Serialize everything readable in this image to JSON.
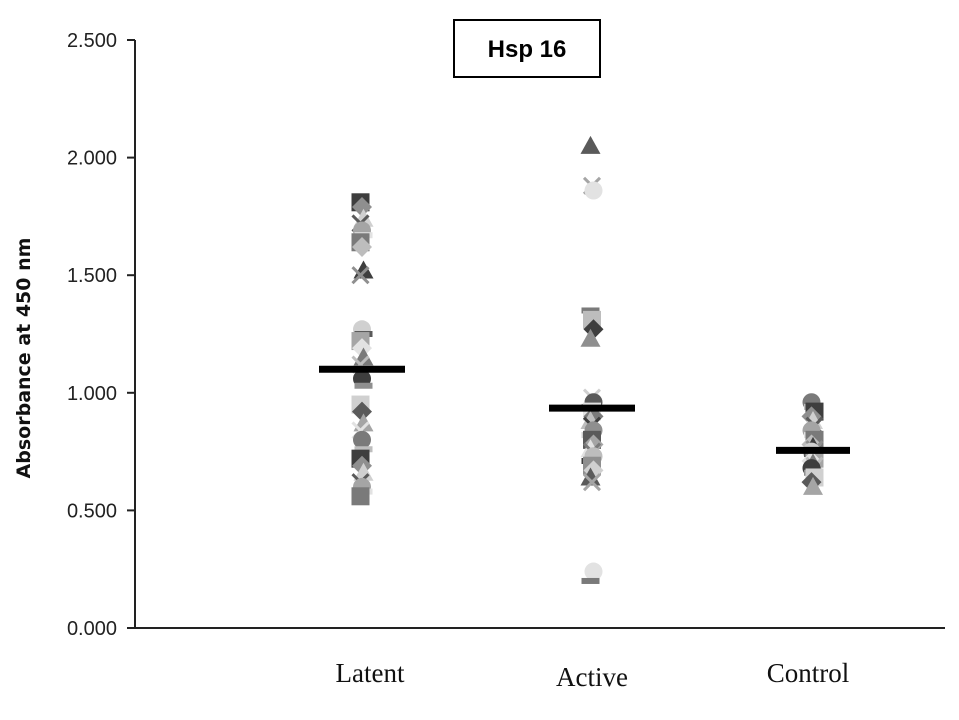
{
  "chart_data": {
    "type": "scatter",
    "title": "Hsp 16",
    "xlabel": "",
    "ylabel": "Absorbance at 450 nm",
    "categories": [
      "Latent",
      "Active",
      "Control"
    ],
    "yticks": [
      "0.000",
      "0.500",
      "1.000",
      "1.500",
      "2.000",
      "2.500"
    ],
    "ylim": [
      0,
      2.5
    ],
    "grid": false,
    "legend": "none",
    "means": [
      1.1,
      0.935,
      0.755
    ],
    "groups": [
      {
        "category": "Latent",
        "values": [
          1.81,
          1.79,
          1.74,
          1.72,
          1.69,
          1.67,
          1.64,
          1.62,
          1.52,
          1.5,
          1.27,
          1.25,
          1.22,
          1.19,
          1.15,
          1.12,
          1.06,
          1.03,
          0.95,
          0.92,
          0.87,
          0.84,
          0.8,
          0.76,
          0.72,
          0.69,
          0.66,
          0.62,
          0.6,
          0.58,
          0.56
        ]
      },
      {
        "category": "Active",
        "values": [
          2.05,
          1.88,
          1.86,
          1.35,
          1.31,
          1.27,
          1.23,
          0.98,
          0.96,
          0.94,
          0.92,
          0.9,
          0.88,
          0.86,
          0.84,
          0.82,
          0.8,
          0.78,
          0.76,
          0.75,
          0.73,
          0.71,
          0.69,
          0.67,
          0.64,
          0.62,
          0.24,
          0.2
        ]
      },
      {
        "category": "Control",
        "values": [
          0.96,
          0.94,
          0.92,
          0.9,
          0.88,
          0.86,
          0.84,
          0.82,
          0.8,
          0.78,
          0.77,
          0.76,
          0.75,
          0.74,
          0.72,
          0.71,
          0.7,
          0.69,
          0.68,
          0.66,
          0.64,
          0.62,
          0.6
        ]
      }
    ]
  },
  "colors": {
    "axis": "#222222",
    "mean_line": "#000000",
    "markers": [
      "#3e3e3e",
      "#5a5a5a",
      "#7a7a7a",
      "#8f8f8f",
      "#a5a5a5",
      "#bdbdbd",
      "#d0d0d0",
      "#e2e2e2"
    ]
  }
}
